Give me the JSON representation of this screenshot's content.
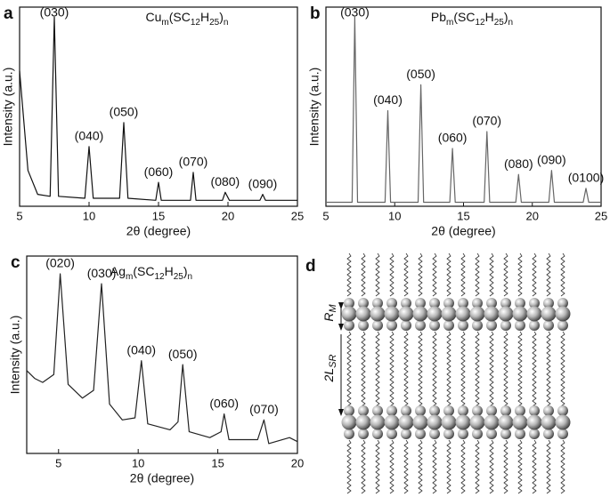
{
  "chart_data": [
    {
      "type": "line",
      "panel": "a",
      "title": [
        "Cu",
        "m",
        "(SC",
        "12",
        "H",
        "25",
        ")",
        "n"
      ],
      "xlabel": "2θ (degree)",
      "ylabel": "Intensity (a.u.)",
      "color": "#111111",
      "xlim": [
        5,
        25
      ],
      "xticks": [
        5,
        10,
        15,
        20,
        25
      ],
      "ylim": [
        0,
        100
      ],
      "x": [
        5,
        5.6,
        6.3,
        7.2,
        7.5,
        7.8,
        9.7,
        10,
        10.3,
        12.2,
        12.5,
        12.8,
        14.8,
        15,
        15.2,
        17.3,
        17.5,
        17.7,
        19.6,
        19.8,
        20.1,
        22.3,
        22.5,
        22.7,
        25
      ],
      "values": [
        68,
        18,
        6,
        5,
        95,
        5,
        4,
        30,
        4,
        4,
        42,
        4,
        3,
        12,
        3,
        3,
        17,
        3,
        3,
        7,
        3,
        3,
        6,
        3,
        3
      ],
      "annotations": [
        {
          "text": "(030)",
          "x": 7.5
        },
        {
          "text": "(040)",
          "x": 10
        },
        {
          "text": "(050)",
          "x": 12.5
        },
        {
          "text": "(060)",
          "x": 15
        },
        {
          "text": "(070)",
          "x": 17.5
        },
        {
          "text": "(080)",
          "x": 19.8
        },
        {
          "text": "(090)",
          "x": 22.5
        }
      ]
    },
    {
      "type": "line",
      "panel": "b",
      "title": [
        "Pb",
        "m",
        "(SC",
        "12",
        "H",
        "25",
        ")",
        "n"
      ],
      "xlabel": "2θ (degree)",
      "ylabel": "Intensity (a.u.)",
      "color": "#666666",
      "xlim": [
        5,
        25
      ],
      "xticks": [
        5,
        10,
        15,
        20,
        25
      ],
      "ylim": [
        0,
        100
      ],
      "x": [
        5,
        6.9,
        7.1,
        7.3,
        9.3,
        9.5,
        9.7,
        11.7,
        11.9,
        12.1,
        14,
        14.2,
        14.4,
        16.5,
        16.7,
        16.9,
        18.8,
        19,
        19.2,
        21.2,
        21.4,
        21.6,
        23.7,
        23.9,
        24.1,
        25
      ],
      "values": [
        2,
        2,
        95,
        2,
        2,
        48,
        2,
        2,
        61,
        2,
        2,
        29,
        2,
        2,
        37.5,
        2,
        2,
        16,
        2,
        2,
        18,
        2,
        2,
        9,
        2,
        2
      ],
      "annotations": [
        {
          "text": "(030)",
          "x": 7.1
        },
        {
          "text": "(040)",
          "x": 9.5
        },
        {
          "text": "(050)",
          "x": 11.9
        },
        {
          "text": "(060)",
          "x": 14.2
        },
        {
          "text": "(070)",
          "x": 16.7
        },
        {
          "text": "(080)",
          "x": 19
        },
        {
          "text": "(090)",
          "x": 21.4
        },
        {
          "text": "(0100)",
          "x": 23.9
        }
      ]
    },
    {
      "type": "line",
      "panel": "c",
      "title": [
        "Ag",
        "m",
        "(SC",
        "12",
        "H",
        "25",
        ")",
        "n"
      ],
      "xlabel": "2θ (degree)",
      "ylabel": "Intensity (a.u.)",
      "color": "#222222",
      "xlim": [
        3,
        20
      ],
      "xticks": [
        5,
        10,
        15,
        20
      ],
      "ylim": [
        0,
        100
      ],
      "x": [
        3,
        3.5,
        4,
        4.7,
        5.1,
        5.6,
        6.5,
        7.2,
        7.7,
        8.2,
        9,
        9.8,
        10.2,
        10.6,
        12,
        12.5,
        12.8,
        13.2,
        14.5,
        15.2,
        15.4,
        15.7,
        17.5,
        17.9,
        18.2,
        19.5,
        20
      ],
      "values": [
        42,
        38,
        36,
        40,
        91,
        35,
        28,
        32,
        86,
        25,
        17,
        18,
        47,
        15,
        12,
        16,
        45,
        11,
        8,
        11,
        20,
        7,
        7,
        17,
        5,
        8,
        6
      ],
      "annotations": [
        {
          "text": "(020)",
          "x": 5.1
        },
        {
          "text": "(030)",
          "x": 7.7
        },
        {
          "text": "(040)",
          "x": 10.2
        },
        {
          "text": "(050)",
          "x": 12.8
        },
        {
          "text": "(060)",
          "x": 15.4
        },
        {
          "text": "(070)",
          "x": 17.9
        }
      ]
    }
  ],
  "diagram": {
    "panel": "d",
    "spacing_label": [
      "R",
      "M"
    ],
    "chain_label": [
      "2L",
      "SR"
    ]
  }
}
